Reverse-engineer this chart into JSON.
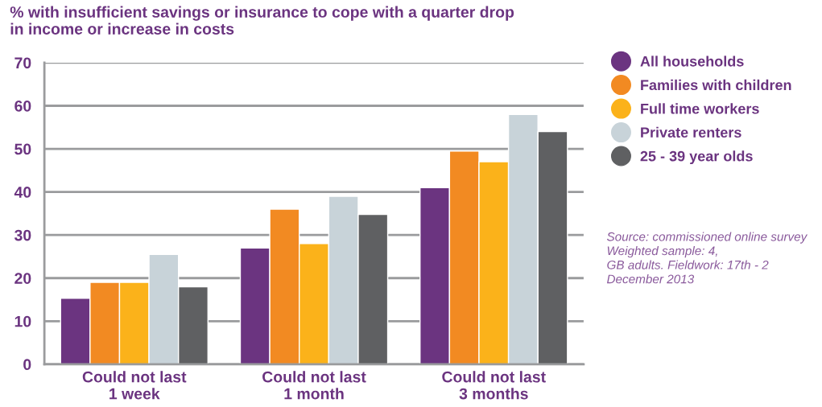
{
  "chart_data": {
    "type": "bar",
    "title": "% with insufficient savings or insurance to cope with a quarter drop\nin income or increase in costs",
    "categories": [
      "Could not last\n1 week",
      "Could not last\n1 month",
      "Could not last\n3 months"
    ],
    "series": [
      {
        "name": "All households",
        "color": "#6b3480",
        "values": [
          15.3,
          27,
          41
        ]
      },
      {
        "name": "Families with children",
        "color": "#f28a22",
        "values": [
          19,
          36,
          49.5
        ]
      },
      {
        "name": "Full time workers",
        "color": "#fbb21a",
        "values": [
          19,
          28,
          47
        ]
      },
      {
        "name": "Private renters",
        "color": "#c8d3d9",
        "values": [
          25.5,
          39,
          58
        ]
      },
      {
        "name": "25 - 39 year olds",
        "color": "#5f6062",
        "values": [
          18,
          34.8,
          54
        ]
      }
    ],
    "ylim": [
      0,
      70
    ],
    "yticks": [
      0,
      10,
      20,
      30,
      40,
      50,
      60,
      70
    ],
    "grid": "y",
    "legend": "right",
    "annotations": [
      "Source: commissioned online survey\nWeighted sample: 4,\nGB adults. Fieldwork: 17th - 2\nDecember 2013"
    ]
  }
}
